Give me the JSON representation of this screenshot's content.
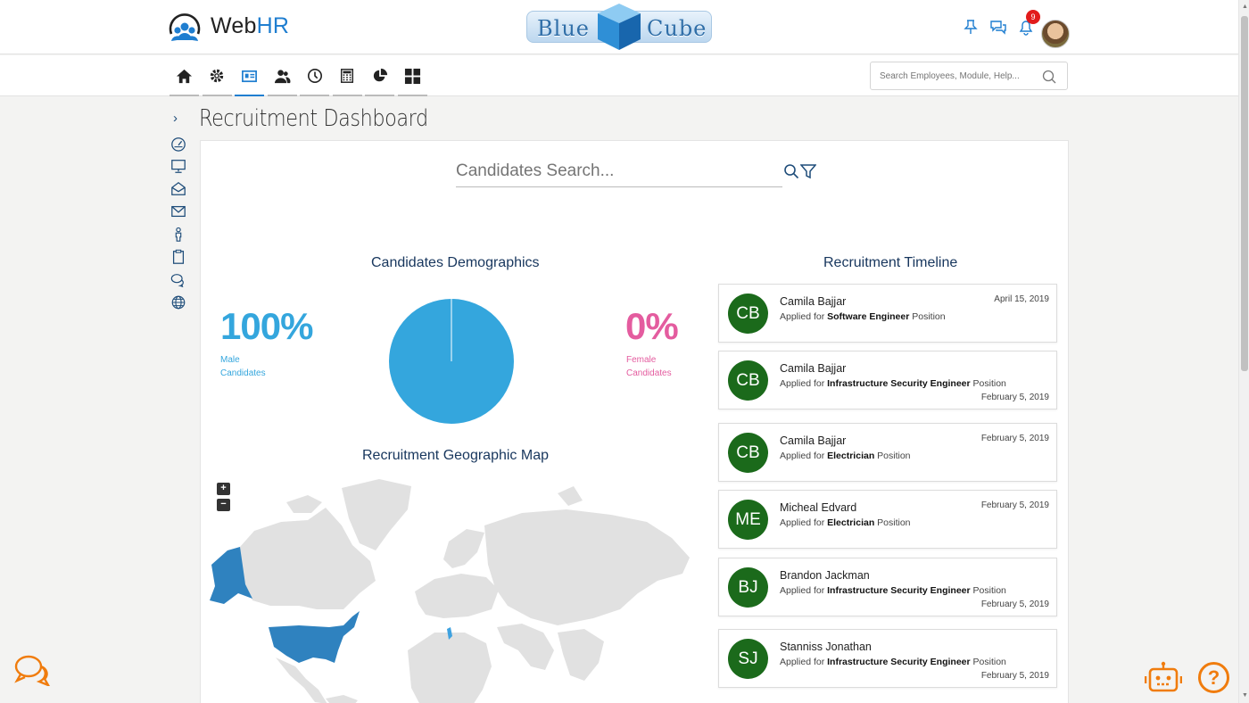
{
  "header": {
    "logo_text_web": "Web",
    "logo_text_hr": "HR",
    "brand_word_left": "Blue",
    "brand_word_right": "Cube",
    "notifications_count": "9"
  },
  "nav": {
    "icons": [
      "home-icon",
      "gear-icon",
      "id-card-icon",
      "users-icon",
      "clock-icon",
      "calculator-icon",
      "pie-chart-icon",
      "grid-icon"
    ],
    "active_index": 2,
    "search_placeholder": "Search Employees, Module, Help..."
  },
  "sidebar": {
    "icons": [
      "dashboard-gauge-icon",
      "monitor-icon",
      "open-envelope-icon",
      "envelope-icon",
      "person-icon",
      "clipboard-icon",
      "chat-bubbles-icon",
      "globe-icon"
    ]
  },
  "page": {
    "title": "Recruitment Dashboard",
    "candidate_search_placeholder": "Candidates Search..."
  },
  "demographics": {
    "title": "Candidates Demographics",
    "male_percent": "100%",
    "male_label_1": "Male",
    "male_label_2": "Candidates",
    "female_percent": "0%",
    "female_label_1": "Female",
    "female_label_2": "Candidates",
    "colors": {
      "male": "#34a6dd",
      "female": "#e45c9f"
    }
  },
  "map": {
    "title": "Recruitment Geographic Map",
    "zoom_in": "+",
    "zoom_out": "−",
    "highlighted_regions": [
      "United States",
      "Alaska",
      "Tunisia"
    ]
  },
  "timeline": {
    "title": "Recruitment Timeline",
    "applied_prefix": "Applied for",
    "position_suffix": "Position",
    "items": [
      {
        "initials": "CB",
        "name": "Camila Bajjar",
        "position": "Software Engineer",
        "date": "April 15, 2019",
        "date_pos": "top"
      },
      {
        "initials": "CB",
        "name": "Camila Bajjar",
        "position": "Infrastructure Security Engineer",
        "date": "February 5, 2019",
        "date_pos": "bottom"
      },
      {
        "initials": "CB",
        "name": "Camila Bajjar",
        "position": "Electrician",
        "date": "February 5, 2019",
        "date_pos": "top"
      },
      {
        "initials": "ME",
        "name": "Micheal Edvard",
        "position": "Electrician",
        "date": "February 5, 2019",
        "date_pos": "top"
      },
      {
        "initials": "BJ",
        "name": "Brandon Jackman",
        "position": "Infrastructure Security Engineer",
        "date": "February 5, 2019",
        "date_pos": "bottom"
      },
      {
        "initials": "SJ",
        "name": "Stanniss Jonathan",
        "position": "Infrastructure Security Engineer",
        "date": "February 5, 2019",
        "date_pos": "bottom"
      }
    ]
  },
  "floating": {
    "help_label": "?"
  }
}
